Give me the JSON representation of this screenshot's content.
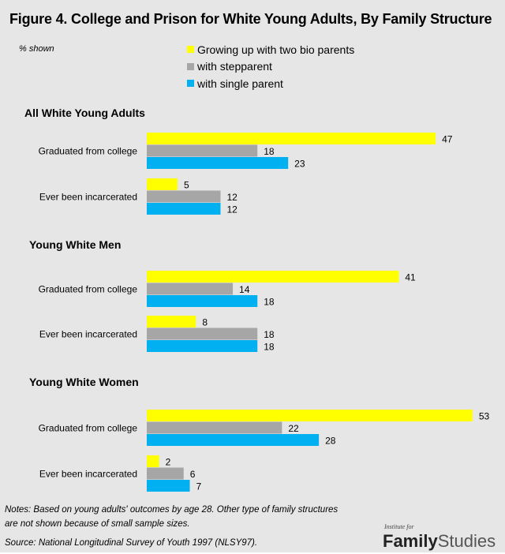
{
  "header": {
    "title": "Figure 4. College and Prison for White Young Adults, By Family Structure",
    "units_note": "% shown"
  },
  "legend": [
    {
      "label": "Growing up with two bio parents",
      "color": "#ffff00"
    },
    {
      "label": "with stepparent",
      "color": "#a6a6a6"
    },
    {
      "label": "with single parent",
      "color": "#00b0f0"
    }
  ],
  "chart_data": {
    "type": "bar",
    "orientation": "horizontal",
    "title": "Figure 4. College and Prison for White Young Adults, By Family Structure",
    "xlabel": "",
    "ylabel": "",
    "units": "% shown",
    "xlim": [
      0,
      53
    ],
    "grid": false,
    "legend_position": "top-center",
    "series_names": [
      "Growing up with two bio parents",
      "with stepparent",
      "with single parent"
    ],
    "series_colors": [
      "#ffff00",
      "#a6a6a6",
      "#00b0f0"
    ],
    "panels": [
      {
        "title": "All White Young Adults",
        "categories": [
          "Graduated from college",
          "Ever been incarcerated"
        ],
        "series": [
          {
            "name": "Growing up with two bio parents",
            "values": [
              47,
              5
            ]
          },
          {
            "name": "with stepparent",
            "values": [
              18,
              12
            ]
          },
          {
            "name": "with single parent",
            "values": [
              23,
              12
            ]
          }
        ]
      },
      {
        "title": "Young White Men",
        "categories": [
          "Graduated from college",
          "Ever been incarcerated"
        ],
        "series": [
          {
            "name": "Growing up with two bio parents",
            "values": [
              41,
              8
            ]
          },
          {
            "name": "with stepparent",
            "values": [
              14,
              18
            ]
          },
          {
            "name": "with single parent",
            "values": [
              18,
              18
            ]
          }
        ]
      },
      {
        "title": "Young White Women",
        "categories": [
          "Graduated from college",
          "Ever been incarcerated"
        ],
        "series": [
          {
            "name": "Growing up with two bio parents",
            "values": [
              53,
              2
            ]
          },
          {
            "name": "with stepparent",
            "values": [
              22,
              6
            ]
          },
          {
            "name": "with single parent",
            "values": [
              28,
              7
            ]
          }
        ]
      }
    ]
  },
  "footer": {
    "notes": "Notes: Based on young adults' outcomes by age 28. Other type of family structures are not shown because of small sample sizes.",
    "source": "Source: National Longitudinal Survey of Youth 1997 (NLSY97).",
    "logo_small": "Institute for",
    "logo_bold": "Family",
    "logo_light": "Studies"
  }
}
